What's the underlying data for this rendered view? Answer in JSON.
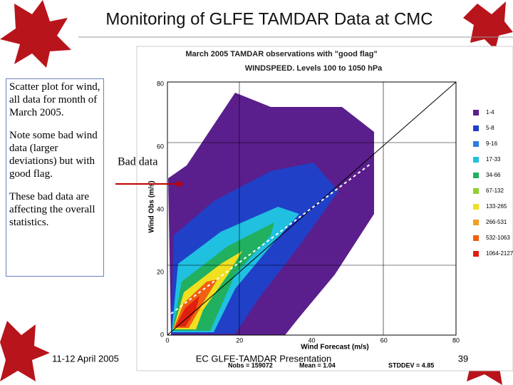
{
  "title": "Monitoring of GLFE TAMDAR Data at CMC",
  "notes": [
    "Scatter plot for wind, all data for month of March 2005.",
    "Note some bad wind data (larger deviations) but with good flag.",
    "These bad data are affecting the overall statistics."
  ],
  "callout": "Bad data",
  "plot": {
    "title": "March 2005   TAMDAR observations with \"good flag\"",
    "subtitle": "WINDSPEED. Levels 100 to 1050 hPa",
    "x_label": "Wind Forecast (m/s)",
    "y_label": "Wind Obs (m/s)",
    "x_ticks": [
      "0",
      "20",
      "40",
      "60",
      "80"
    ],
    "y_ticks": [
      "0",
      "20",
      "40",
      "60",
      "80"
    ],
    "legend": [
      {
        "label": "1-4",
        "color": "#5a1f8c"
      },
      {
        "label": "5-8",
        "color": "#2040c8"
      },
      {
        "label": "9-16",
        "color": "#2a7fe0"
      },
      {
        "label": "17-33",
        "color": "#20c0e0"
      },
      {
        "label": "34-66",
        "color": "#20b060"
      },
      {
        "label": "67-132",
        "color": "#90d030"
      },
      {
        "label": "133-265",
        "color": "#f0e020"
      },
      {
        "label": "266-531",
        "color": "#f0a020"
      },
      {
        "label": "532-1063",
        "color": "#f06010"
      },
      {
        "label": "1064-2127",
        "color": "#e02010"
      }
    ],
    "stats": [
      "Nobs = 159072",
      "Mean = 1.04",
      "STDDEV = 4.85"
    ]
  },
  "footer": {
    "date": "11-12 April 2005",
    "presentation": "EC GLFE-TAMDAR Presentation",
    "page": "39"
  }
}
